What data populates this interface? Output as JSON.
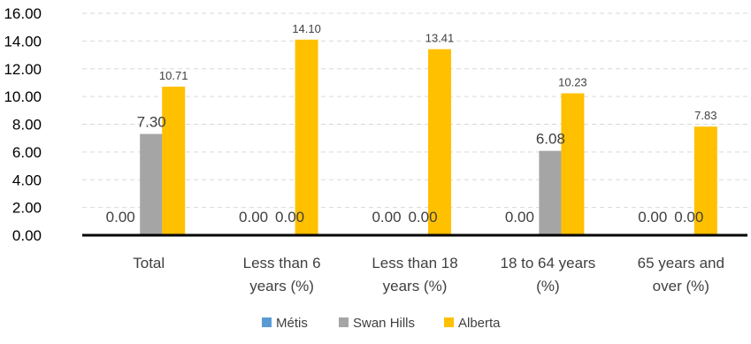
{
  "chart_data": {
    "type": "bar",
    "title": "",
    "xlabel": "",
    "ylabel": "",
    "categories": [
      [
        "Total"
      ],
      [
        "Less than 6",
        "years (%)"
      ],
      [
        "Less than 18",
        "years (%)"
      ],
      [
        "18 to 64 years",
        "(%)"
      ],
      [
        "65 years and",
        "over (%)"
      ]
    ],
    "ylim": [
      0,
      16
    ],
    "yticks": [
      "0.00",
      "2.00",
      "4.00",
      "6.00",
      "8.00",
      "10.00",
      "12.00",
      "14.00",
      "16.00"
    ],
    "grid": true,
    "legend_position": "bottom",
    "series": [
      {
        "name": "Métis",
        "color": "#5b9bd5",
        "values": [
          0,
          0,
          0,
          0,
          0
        ],
        "labels": [
          "0.00",
          "0.00",
          "0.00",
          "0.00",
          "0.00"
        ]
      },
      {
        "name": "Swan Hills",
        "color": "#a5a5a5",
        "values": [
          7.3,
          0,
          0,
          6.08,
          0
        ],
        "labels": [
          "7.30",
          "0.00",
          "0.00",
          "6.08",
          "0.00"
        ]
      },
      {
        "name": "Alberta",
        "color": "#ffc000",
        "values": [
          10.71,
          14.1,
          13.41,
          10.23,
          7.83
        ],
        "labels": [
          "10.71",
          "14.10",
          "13.41",
          "10.23",
          "7.83"
        ]
      }
    ]
  }
}
